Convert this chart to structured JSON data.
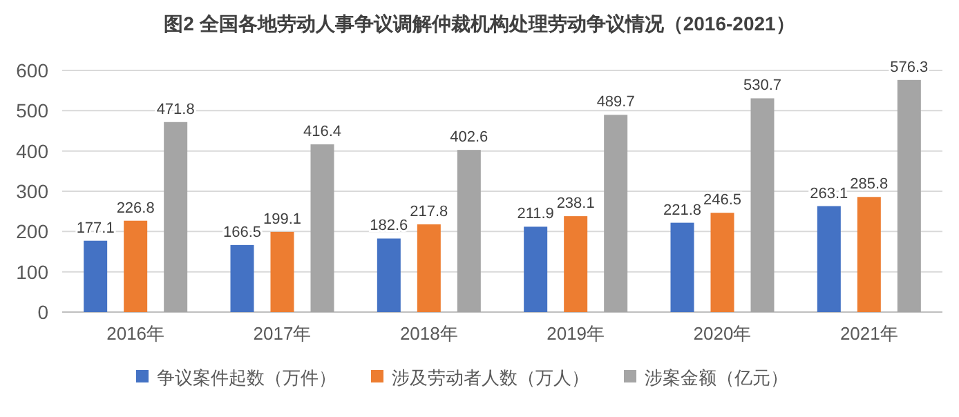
{
  "chart_data": {
    "type": "bar",
    "title": "图2 全国各地劳动人事争议调解仲裁机构处理劳动争议情况（2016-2021）",
    "categories": [
      "2016年",
      "2017年",
      "2018年",
      "2019年",
      "2020年",
      "2021年"
    ],
    "series": [
      {
        "name": "争议案件起数（万件）",
        "color": "#4472c4",
        "values": [
          177.1,
          166.5,
          182.6,
          211.9,
          221.8,
          263.1
        ]
      },
      {
        "name": "涉及劳动者人数（万人）",
        "color": "#ed7d31",
        "values": [
          226.8,
          199.1,
          217.8,
          238.1,
          246.5,
          285.8
        ]
      },
      {
        "name": "涉案金额（亿元）",
        "color": "#a5a5a5",
        "values": [
          471.8,
          416.4,
          402.6,
          489.7,
          530.7,
          576.3
        ]
      }
    ],
    "ylim": [
      0,
      600
    ],
    "yticks": [
      0,
      100,
      200,
      300,
      400,
      500,
      600
    ],
    "grid": "y",
    "legend": "bottom",
    "data_labels": true
  }
}
